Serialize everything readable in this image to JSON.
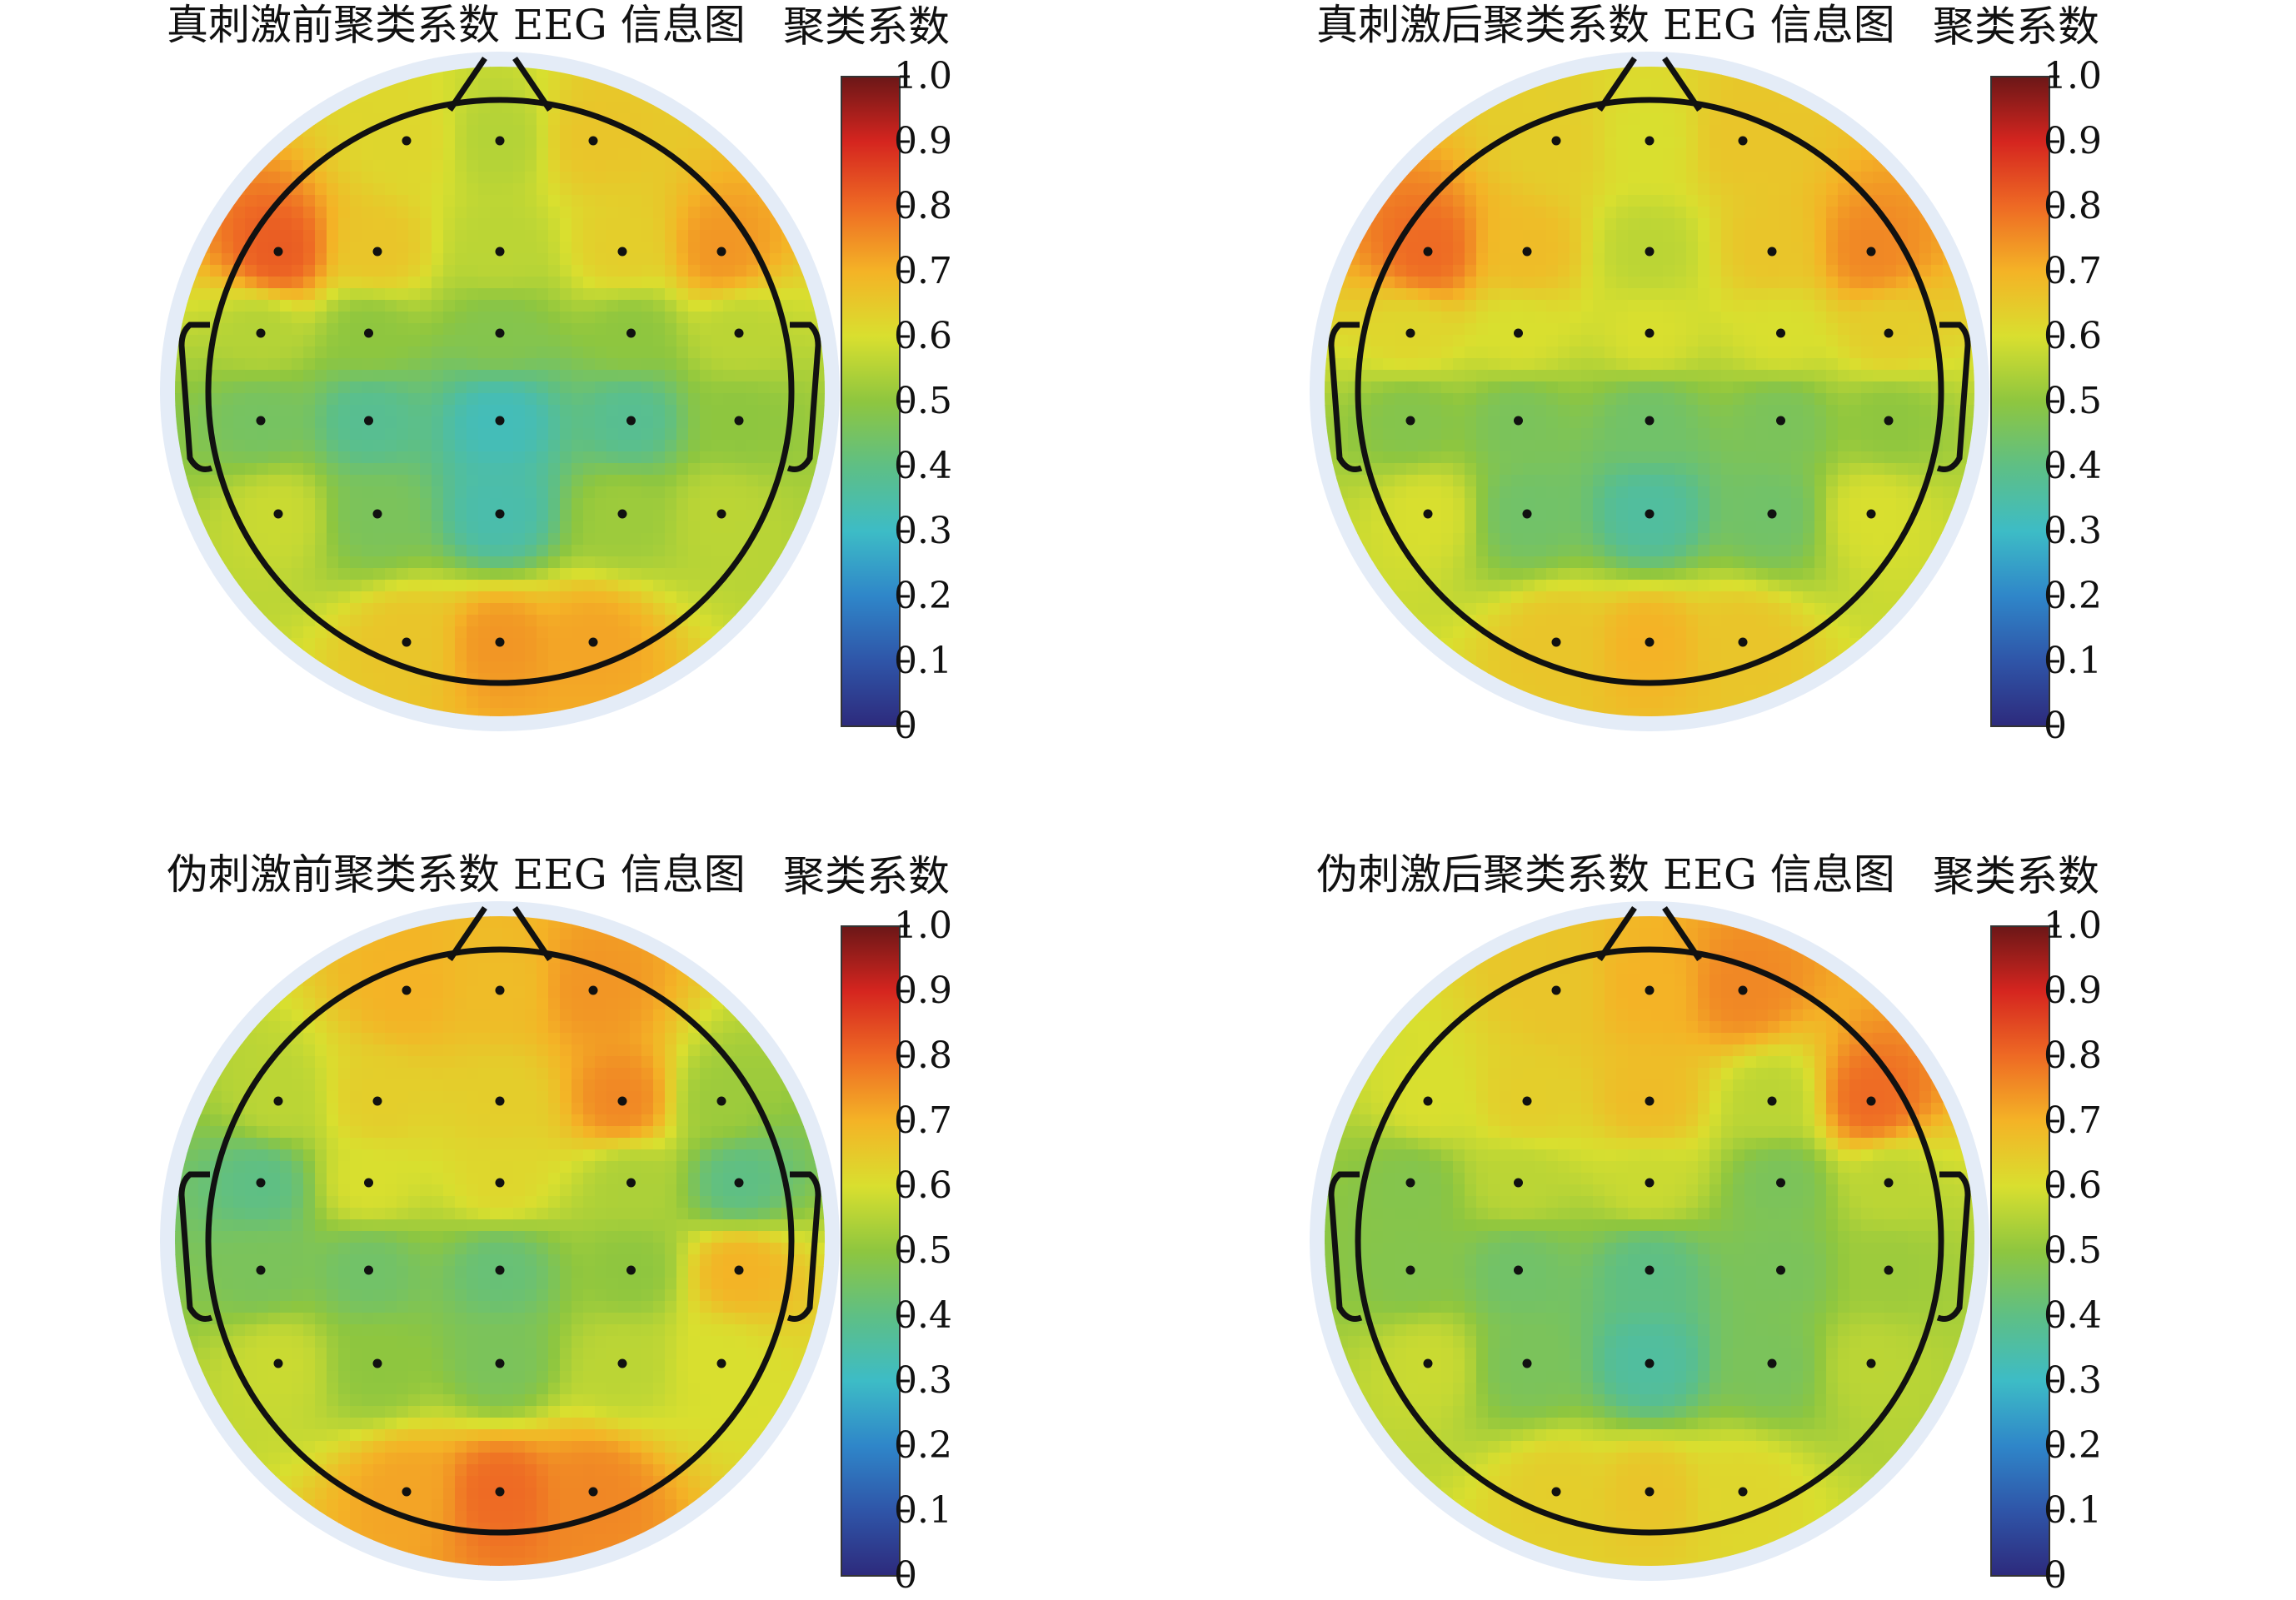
{
  "colorbar": {
    "title": "聚类系数",
    "ticks": [
      "1.0",
      "0.9",
      "0.8",
      "0.7",
      "0.6",
      "0.5",
      "0.4",
      "0.3",
      "0.2",
      "0.1",
      "0"
    ],
    "range": [
      0,
      1
    ],
    "colormap": [
      "#2d2a7c",
      "#2f55a8",
      "#2f86c9",
      "#3dbcc6",
      "#5ebf85",
      "#8ec63f",
      "#d9df2f",
      "#f4b326",
      "#ee6a24",
      "#d5251f",
      "#6b1717"
    ]
  },
  "chart_data": [
    {
      "type": "heatmap",
      "title": "真刺激前聚类系数 EEG 信息图",
      "colorbar_label": "聚类系数",
      "value_range": [
        0,
        1
      ],
      "electrode_values": [
        {
          "row": "front",
          "values": [
            0.62,
            0.55,
            0.66
          ]
        },
        {
          "row": "frontal",
          "values": [
            0.82,
            0.66,
            0.56,
            0.64,
            0.74
          ]
        },
        {
          "row": "central",
          "values": [
            0.55,
            0.5,
            0.48,
            0.5,
            0.56
          ]
        },
        {
          "row": "parietal",
          "values": [
            0.45,
            0.38,
            0.32,
            0.38,
            0.5
          ]
        },
        {
          "row": "posterior",
          "values": [
            0.58,
            0.46,
            0.34,
            0.52,
            0.56
          ]
        },
        {
          "row": "occipital",
          "values": [
            0.66,
            0.74,
            0.72
          ]
        }
      ]
    },
    {
      "type": "heatmap",
      "title": "真刺激后聚类系数 EEG 信息图",
      "colorbar_label": "聚类系数",
      "value_range": [
        0,
        1
      ],
      "electrode_values": [
        {
          "row": "front",
          "values": [
            0.64,
            0.6,
            0.66
          ]
        },
        {
          "row": "frontal",
          "values": [
            0.8,
            0.68,
            0.56,
            0.66,
            0.76
          ]
        },
        {
          "row": "central",
          "values": [
            0.62,
            0.6,
            0.6,
            0.6,
            0.64
          ]
        },
        {
          "row": "parietal",
          "values": [
            0.48,
            0.46,
            0.44,
            0.46,
            0.5
          ]
        },
        {
          "row": "posterior",
          "values": [
            0.6,
            0.44,
            0.36,
            0.44,
            0.6
          ]
        },
        {
          "row": "occipital",
          "values": [
            0.66,
            0.7,
            0.66
          ]
        }
      ]
    },
    {
      "type": "heatmap",
      "title": "伪刺激前聚类系数 EEG 信息图",
      "colorbar_label": "聚类系数",
      "value_range": [
        0,
        1
      ],
      "electrode_values": [
        {
          "row": "front",
          "values": [
            0.7,
            0.68,
            0.74
          ]
        },
        {
          "row": "frontal",
          "values": [
            0.56,
            0.64,
            0.64,
            0.76,
            0.52
          ]
        },
        {
          "row": "central",
          "values": [
            0.4,
            0.6,
            0.62,
            0.54,
            0.4
          ]
        },
        {
          "row": "parietal",
          "values": [
            0.46,
            0.44,
            0.42,
            0.5,
            0.7
          ]
        },
        {
          "row": "posterior",
          "values": [
            0.58,
            0.5,
            0.46,
            0.56,
            0.6
          ]
        },
        {
          "row": "occipital",
          "values": [
            0.72,
            0.8,
            0.76
          ]
        }
      ]
    },
    {
      "type": "heatmap",
      "title": "伪刺激后聚类系数 EEG 信息图",
      "colorbar_label": "聚类系数",
      "value_range": [
        0,
        1
      ],
      "electrode_values": [
        {
          "row": "front",
          "values": [
            0.66,
            0.7,
            0.76
          ]
        },
        {
          "row": "frontal",
          "values": [
            0.6,
            0.64,
            0.68,
            0.56,
            0.8
          ]
        },
        {
          "row": "central",
          "values": [
            0.48,
            0.56,
            0.58,
            0.46,
            0.56
          ]
        },
        {
          "row": "parietal",
          "values": [
            0.48,
            0.44,
            0.4,
            0.46,
            0.52
          ]
        },
        {
          "row": "posterior",
          "values": [
            0.58,
            0.46,
            0.36,
            0.46,
            0.56
          ]
        },
        {
          "row": "occipital",
          "values": [
            0.64,
            0.66,
            0.62
          ]
        }
      ]
    }
  ]
}
